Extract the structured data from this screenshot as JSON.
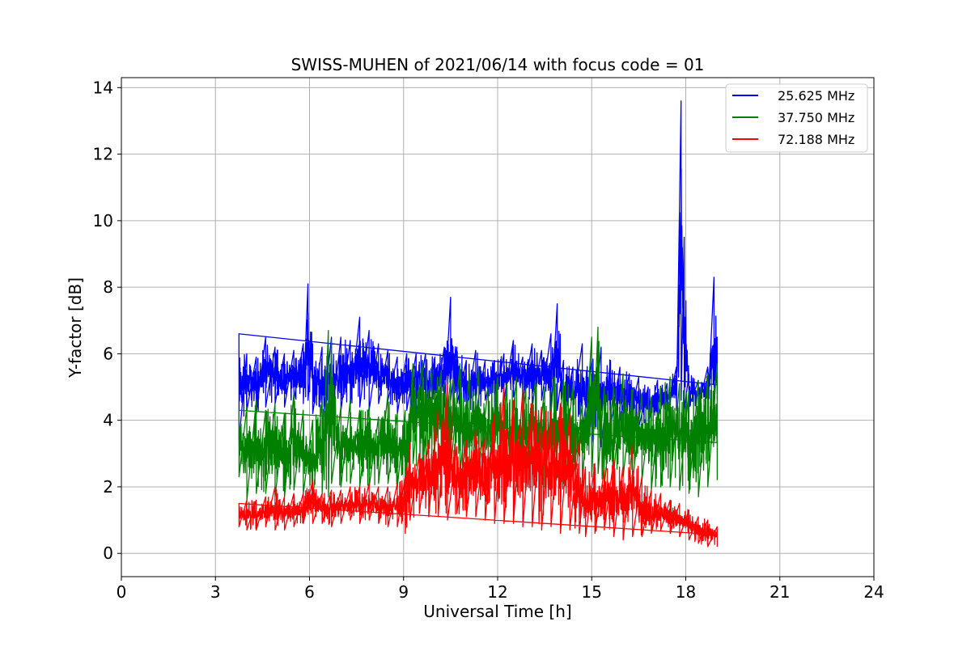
{
  "chart_data": {
    "type": "line",
    "title": "SWISS-MUHEN of 2021/06/14 with focus code = 01",
    "xlabel": "Universal Time [h]",
    "ylabel": "Y-factor [dB]",
    "xlim": [
      0,
      24
    ],
    "ylim": [
      -0.7,
      14.3
    ],
    "xticks": [
      0,
      3,
      6,
      9,
      12,
      15,
      18,
      21,
      24
    ],
    "yticks": [
      0,
      2,
      4,
      6,
      8,
      10,
      12,
      14
    ],
    "grid": true,
    "legend_position": "top-right",
    "series": [
      {
        "name": "25.625 MHz",
        "color": "#0000ff",
        "x": [
          3.75,
          4.0,
          4.3,
          4.6,
          4.9,
          5.2,
          5.5,
          5.8,
          5.95,
          6.1,
          6.4,
          6.7,
          7.0,
          7.3,
          7.6,
          7.9,
          8.2,
          8.5,
          8.8,
          9.1,
          9.4,
          9.7,
          10.0,
          10.3,
          10.5,
          10.7,
          11.0,
          11.3,
          11.6,
          11.9,
          12.2,
          12.5,
          12.8,
          13.1,
          13.4,
          13.7,
          13.9,
          14.1,
          14.4,
          14.7,
          15.0,
          15.3,
          15.6,
          15.9,
          16.2,
          16.5,
          16.8,
          17.1,
          17.4,
          17.7,
          17.85,
          17.95,
          18.1,
          18.4,
          18.7,
          18.9,
          19.0
        ],
        "low": [
          3.4,
          4.3,
          4.2,
          4.4,
          4.5,
          4.4,
          4.6,
          4.5,
          4.6,
          4.2,
          3.8,
          4.0,
          4.3,
          4.5,
          4.4,
          4.3,
          4.5,
          4.6,
          4.2,
          4.3,
          4.2,
          4.5,
          4.4,
          4.4,
          4.6,
          4.5,
          4.3,
          4.2,
          4.6,
          4.4,
          4.6,
          4.7,
          4.6,
          4.5,
          4.6,
          4.2,
          4.3,
          4.1,
          4.4,
          3.7,
          3.3,
          3.2,
          3.8,
          4.0,
          4.0,
          3.8,
          3.9,
          4.0,
          4.2,
          4.3,
          4.6,
          4.3,
          4.4,
          4.4,
          4.3,
          4.2,
          4.6
        ],
        "high": [
          6.6,
          6.0,
          5.9,
          6.5,
          6.2,
          6.0,
          6.1,
          6.3,
          8.1,
          6.3,
          6.2,
          6.5,
          6.5,
          6.4,
          7.1,
          6.7,
          6.3,
          6.1,
          5.9,
          6.0,
          6.0,
          6.0,
          5.9,
          6.2,
          7.7,
          6.2,
          5.8,
          6.1,
          5.8,
          5.8,
          6.0,
          6.4,
          5.9,
          6.3,
          6.1,
          6.6,
          7.5,
          5.8,
          5.6,
          6.3,
          5.8,
          6.2,
          5.8,
          5.6,
          5.4,
          5.3,
          5.0,
          5.2,
          5.1,
          5.6,
          13.6,
          9.5,
          5.4,
          5.2,
          5.6,
          8.3,
          6.5
        ]
      },
      {
        "name": "37.750 MHz",
        "color": "#008000",
        "x": [
          3.75,
          4.0,
          4.3,
          4.6,
          4.9,
          5.2,
          5.5,
          5.8,
          6.1,
          6.4,
          6.6,
          6.7,
          7.0,
          7.3,
          7.6,
          7.9,
          8.2,
          8.5,
          8.8,
          9.05,
          9.3,
          9.6,
          9.9,
          10.2,
          10.5,
          10.8,
          11.1,
          11.4,
          11.7,
          12.0,
          12.3,
          12.6,
          12.9,
          13.2,
          13.5,
          13.8,
          14.1,
          14.4,
          14.7,
          15.0,
          15.2,
          15.4,
          15.7,
          16.0,
          16.3,
          16.6,
          16.9,
          17.2,
          17.5,
          17.8,
          18.1,
          18.4,
          18.7,
          19.0
        ],
        "low": [
          2.3,
          1.6,
          1.8,
          1.8,
          1.7,
          1.7,
          1.9,
          1.8,
          1.6,
          1.8,
          1.7,
          2.1,
          2.0,
          2.1,
          2.0,
          2.0,
          2.1,
          2.1,
          2.0,
          1.9,
          2.7,
          2.5,
          2.4,
          2.6,
          2.5,
          2.4,
          2.3,
          2.5,
          2.4,
          2.3,
          2.2,
          2.0,
          2.3,
          2.3,
          2.0,
          2.2,
          2.1,
          2.2,
          2.1,
          2.3,
          2.4,
          2.0,
          2.4,
          2.3,
          2.1,
          2.2,
          1.9,
          2.0,
          2.0,
          1.9,
          1.8,
          1.7,
          2.0,
          2.2
        ],
        "high": [
          4.3,
          4.4,
          4.6,
          4.3,
          4.5,
          4.2,
          4.8,
          4.3,
          4.0,
          4.6,
          6.7,
          6.4,
          4.4,
          4.6,
          4.3,
          4.4,
          4.1,
          4.8,
          4.2,
          4.3,
          5.7,
          5.8,
          5.6,
          5.5,
          5.2,
          5.7,
          5.4,
          5.6,
          5.0,
          5.3,
          5.1,
          5.3,
          5.0,
          5.2,
          5.0,
          5.3,
          5.2,
          5.1,
          4.5,
          6.5,
          6.8,
          5.0,
          5.0,
          5.4,
          4.9,
          4.8,
          4.7,
          5.0,
          5.3,
          5.1,
          4.9,
          5.2,
          5.4,
          5.7
        ]
      },
      {
        "name": "72.188 MHz",
        "color": "#ff0000",
        "x": [
          3.75,
          4.0,
          4.3,
          4.6,
          4.9,
          5.2,
          5.5,
          5.8,
          6.1,
          6.4,
          6.7,
          7.0,
          7.3,
          7.6,
          7.9,
          8.2,
          8.5,
          8.8,
          9.05,
          9.2,
          9.5,
          9.8,
          10.1,
          10.4,
          10.7,
          11.0,
          11.3,
          11.6,
          11.9,
          12.2,
          12.5,
          12.8,
          13.1,
          13.4,
          13.7,
          14.0,
          14.3,
          14.6,
          14.8,
          15.1,
          15.4,
          15.7,
          16.0,
          16.3,
          16.6,
          16.9,
          17.2,
          17.5,
          17.8,
          18.1,
          18.4,
          18.7,
          19.0
        ],
        "low": [
          0.8,
          0.7,
          0.7,
          0.8,
          0.7,
          0.7,
          0.8,
          0.9,
          0.9,
          0.9,
          0.8,
          0.9,
          1.0,
          0.9,
          1.0,
          0.9,
          0.8,
          0.8,
          0.6,
          1.0,
          1.2,
          1.1,
          1.1,
          1.0,
          1.2,
          1.1,
          1.1,
          1.0,
          0.9,
          0.9,
          0.9,
          0.8,
          0.8,
          0.7,
          0.8,
          0.6,
          0.7,
          0.6,
          0.5,
          0.6,
          0.7,
          0.5,
          0.4,
          0.5,
          0.5,
          0.6,
          0.7,
          0.6,
          0.5,
          0.4,
          0.3,
          0.2,
          0.2
        ],
        "high": [
          1.5,
          1.6,
          1.6,
          1.7,
          2.0,
          1.7,
          1.8,
          1.8,
          2.2,
          1.8,
          1.9,
          1.9,
          2.0,
          2.0,
          2.1,
          2.0,
          2.0,
          2.1,
          2.3,
          3.3,
          3.0,
          3.4,
          4.3,
          5.1,
          3.2,
          3.4,
          3.7,
          3.5,
          4.2,
          5.0,
          4.6,
          4.9,
          4.5,
          4.4,
          4.3,
          4.5,
          4.2,
          3.4,
          2.6,
          2.7,
          2.5,
          2.8,
          2.6,
          3.3,
          2.3,
          1.9,
          1.8,
          1.6,
          1.5,
          1.3,
          1.1,
          1.0,
          0.8
        ]
      }
    ]
  }
}
